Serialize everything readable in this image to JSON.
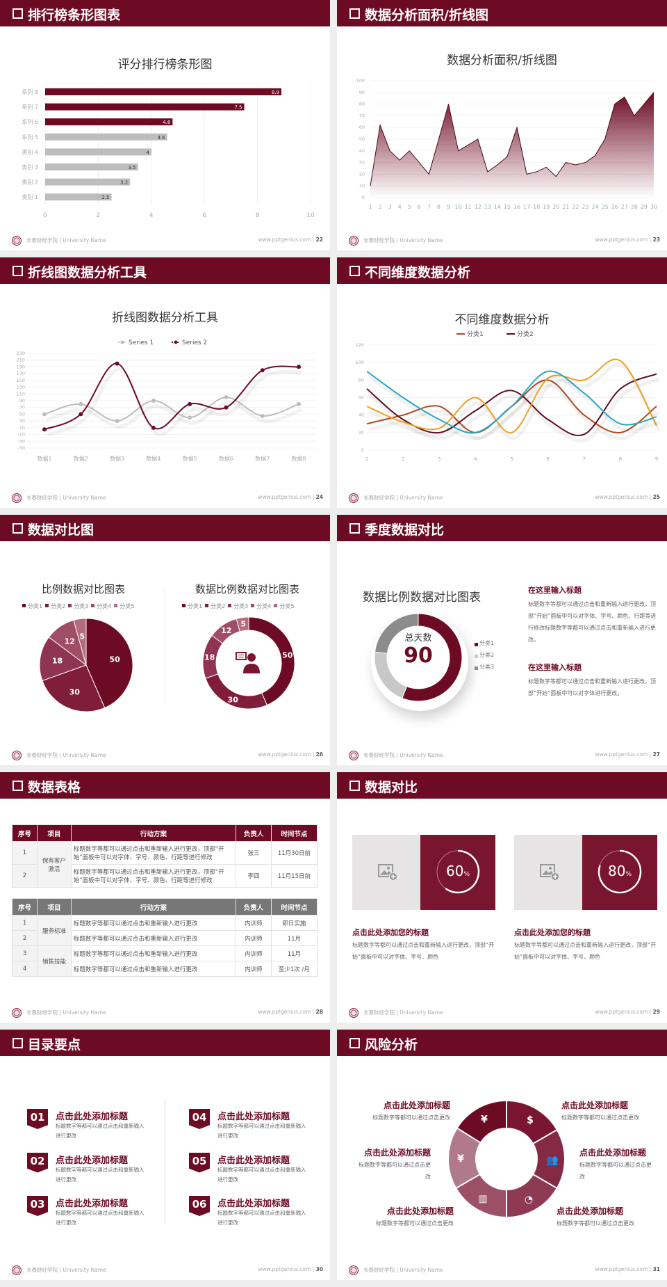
{
  "colors": {
    "brand": "#6d0a24",
    "gray": "#bdbdbd"
  },
  "footer": {
    "school": "长春财经学院 | University Name",
    "site": "www.pptgenius.com"
  },
  "slides": [
    {
      "title": "排行榜条形图表",
      "page": "22"
    },
    {
      "title": "数据分析面积/折线图",
      "page": "23"
    },
    {
      "title": "折线图数据分析工具",
      "page": "24"
    },
    {
      "title": "不同维度数据分析",
      "page": "25"
    },
    {
      "title": "数据对比图",
      "page": "26"
    },
    {
      "title": "季度数据对比",
      "page": "27"
    },
    {
      "title": "数据表格",
      "page": "28"
    },
    {
      "title": "数据对比",
      "page": "29"
    },
    {
      "title": "目录要点",
      "page": "30"
    },
    {
      "title": "风险分析",
      "page": "31"
    }
  ],
  "chart_data": [
    {
      "type": "bar",
      "orientation": "horizontal",
      "title": "评分排行榜条形图",
      "categories": [
        "系列 8",
        "系列 7",
        "系列 6",
        "系列 5",
        "类别 4",
        "类别 3",
        "类别 2",
        "类别 1"
      ],
      "values": [
        8.9,
        7.5,
        4.8,
        4.6,
        4,
        3.5,
        3.2,
        2.5
      ],
      "bar_colors": [
        "#6d0a24",
        "#6d0a24",
        "#6d0a24",
        "#bdbdbd",
        "#bdbdbd",
        "#bdbdbd",
        "#bdbdbd",
        "#bdbdbd"
      ],
      "xlim": [
        0,
        10
      ],
      "xticks": [
        "0",
        "2",
        "4",
        "6",
        "8",
        "10"
      ],
      "grid": true
    },
    {
      "type": "area",
      "title": "数据分析面积/折线图",
      "x": [
        "1",
        "2",
        "3",
        "4",
        "5",
        "6",
        "7",
        "8",
        "9",
        "10",
        "11",
        "12",
        "13",
        "14",
        "15",
        "16",
        "17",
        "18",
        "19",
        "20",
        "21",
        "22",
        "23",
        "24",
        "25",
        "26",
        "27",
        "28",
        "29",
        "30"
      ],
      "values": [
        10,
        62,
        40,
        32,
        40,
        30,
        20,
        50,
        80,
        40,
        45,
        50,
        22,
        28,
        35,
        60,
        20,
        22,
        26,
        18,
        30,
        28,
        30,
        36,
        50,
        80,
        86,
        70,
        80,
        90
      ],
      "ylim": [
        0,
        100
      ],
      "yticks": [
        "0",
        "10",
        "20",
        "30",
        "40",
        "50",
        "60",
        "70",
        "80",
        "90",
        "100"
      ],
      "color": "#6d0a24"
    },
    {
      "type": "line",
      "smooth": true,
      "title": "折线图数据分析工具",
      "categories": [
        "数据1",
        "数据2",
        "数据3",
        "数据4",
        "数据5",
        "数据6",
        "数据7",
        "数据8"
      ],
      "series": [
        {
          "name": "Series 1",
          "values": [
            50,
            80,
            30,
            90,
            40,
            100,
            45,
            80
          ],
          "color": "#bdbdbd"
        },
        {
          "name": "Series 2",
          "values": [
            5,
            50,
            200,
            10,
            80,
            70,
            180,
            190
          ],
          "color": "#6d0a24"
        }
      ],
      "ylim": [
        -50,
        230
      ],
      "yticks": [
        "-50",
        "-30",
        "-10",
        "10",
        "30",
        "50",
        "70",
        "90",
        "110",
        "130",
        "150",
        "170",
        "190",
        "210",
        "230"
      ],
      "legend": "top"
    },
    {
      "type": "line",
      "smooth": true,
      "title": "不同维度数据分析",
      "categories": [
        "1",
        "2",
        "3",
        "4",
        "5",
        "6",
        "7",
        "8",
        "9"
      ],
      "series": [
        {
          "name": "分类1",
          "values": [
            30,
            40,
            50,
            20,
            50,
            80,
            40,
            20,
            50
          ],
          "color": "#b5461f"
        },
        {
          "name": "分类2",
          "values": [
            70,
            35,
            20,
            45,
            68,
            35,
            18,
            70,
            87
          ],
          "color": "#5e0b1e"
        },
        {
          "values": [
            50,
            32,
            25,
            60,
            20,
            82,
            80,
            102,
            28
          ],
          "color": "#f0a020"
        },
        {
          "values": [
            90,
            60,
            35,
            20,
            50,
            90,
            65,
            30,
            38
          ],
          "color": "#2aa6c0"
        }
      ],
      "ylim": [
        0,
        120
      ],
      "yticks": [
        "0",
        "20",
        "40",
        "60",
        "80",
        "100",
        "120"
      ],
      "legend": "top"
    },
    {
      "type": "pie",
      "title": "比例数据对比图表",
      "labels": [
        "分类1",
        "分类2",
        "分类3",
        "分类4",
        "分类5"
      ],
      "values": [
        50,
        30,
        18,
        12,
        5
      ],
      "colors": [
        "#6d0a24",
        "#7f1d3b",
        "#8f3452",
        "#a04d68",
        "#b36b82"
      ],
      "legend": "top"
    },
    {
      "type": "pie",
      "donut": true,
      "title": "数据比例数据对比图表",
      "labels": [
        "分类1",
        "分类2",
        "分类3",
        "分类4",
        "分类5"
      ],
      "values": [
        50,
        30,
        18,
        12,
        5
      ],
      "colors": [
        "#6d0a24",
        "#7f1d3b",
        "#8f3452",
        "#a04d68",
        "#b36b82"
      ],
      "legend": "top",
      "center_icon": "presenter-icon"
    },
    {
      "type": "pie",
      "donut": true,
      "title": "数据比例数据对比图表",
      "labels": [
        "分类1",
        "分类2",
        "分类3"
      ],
      "values": [
        56,
        21,
        23
      ],
      "colors": [
        "#6d0a24",
        "#c8c8c8",
        "#8c8c8c"
      ],
      "legend": "right",
      "center_label": "总天数",
      "center_value": "90"
    }
  ],
  "quarter": {
    "blocks": [
      {
        "heading": "在这里输入标题",
        "text": "标题数字等都可以通过点击和重新输入进行更改，顶部“开始”面板中可以对字体、字号、颜色、行距等进行修改标题数字等都可以通过点击和重新输入进行更改。"
      },
      {
        "heading": "在这里输入标题",
        "text": "标题数字等都可以通过点击和重新输入进行更改，顶部“开始”面板中可以对字体进行更改。"
      }
    ]
  },
  "tables": {
    "headers": [
      "序号",
      "项目",
      "行动方案",
      "负责人",
      "时间节点"
    ],
    "table1": {
      "group": "保有客户激活",
      "rows": [
        {
          "no": "1",
          "plan": "标题数字等都可以通过点击和重新输入进行更改，顶部“开始”面板中可以对字体、字号、颜色、行距等进行修改",
          "owner": "张三",
          "time": "11月30日前"
        },
        {
          "no": "2",
          "plan": "标题数字等都可以通过点击和重新输入进行更改，顶部“开始”面板中可以对字体、字号、颜色、行距等进行修改",
          "owner": "李四",
          "time": "11月15日前"
        }
      ]
    },
    "table2": {
      "groups": [
        "服务标准",
        "销售技能"
      ],
      "rows": [
        {
          "no": "1",
          "plan": "标题数字等都可以通过点击和重新输入进行更改",
          "owner": "内训师",
          "time": "即日实施"
        },
        {
          "no": "2",
          "plan": "标题数字等都可以通过点击和重新输入进行更改",
          "owner": "内训师",
          "time": "11月"
        },
        {
          "no": "3",
          "plan": "标题数字等都可以通过点击和重新输入进行更改",
          "owner": "内训师",
          "time": "11月"
        },
        {
          "no": "4",
          "plan": "标题数字等都可以通过点击和重新输入进行更改",
          "owner": "内训师",
          "time": "至少1次 /月"
        }
      ]
    }
  },
  "compare": {
    "cards": [
      {
        "percent": 60,
        "value": "60",
        "unit": "%",
        "heading": "点击此处添加您的标题",
        "text": "标题数字等都可以通过点击和重新输入进行更改，顶部“开始”面板中可以对字体、字号、颜色",
        "image_icon": "add-image-icon"
      },
      {
        "percent": 80,
        "value": "80",
        "unit": "%",
        "heading": "点击此处添加您的标题",
        "text": "标题数字等都可以通过点击和重新输入进行更改，顶部“开始”面板中可以对字体、字号、颜色",
        "image_icon": "add-image-icon"
      }
    ]
  },
  "toc": {
    "items": [
      {
        "num": "01",
        "title": "点击此处添加标题",
        "text": "标题数字等都可以通过点击和重新输入进行更改"
      },
      {
        "num": "02",
        "title": "点击此处添加标题",
        "text": "标题数字等都可以通过点击和重新输入进行更改"
      },
      {
        "num": "03",
        "title": "点击此处添加标题",
        "text": "标题数字等都可以通过点击和重新输入进行更改"
      },
      {
        "num": "04",
        "title": "点击此处添加标题",
        "text": "标题数字等都可以通过点击和重新输入进行更改"
      },
      {
        "num": "05",
        "title": "点击此处添加标题",
        "text": "标题数字等都可以通过点击和重新输入进行更改"
      },
      {
        "num": "06",
        "title": "点击此处添加标题",
        "text": "标题数字等都可以通过点击和重新输入进行更改"
      }
    ]
  },
  "risk": {
    "items": [
      {
        "title": "点击此处添加标题",
        "text": "标题数字等都可以通过点击更改",
        "icon": "money-bag-icon"
      },
      {
        "title": "点击此处添加标题",
        "text": "标题数字等都可以通过点击更改",
        "icon": "coins-icon"
      },
      {
        "title": "点击此处添加标题",
        "text": "标题数字等都可以通过点击更改",
        "icon": "people-icon"
      },
      {
        "title": "点击此处添加标题",
        "text": "标题数字等都可以通过点击更改",
        "icon": "pie-chart-icon"
      },
      {
        "title": "点击此处添加标题",
        "text": "标题数字等都可以通过点击更改",
        "icon": "building-icon"
      },
      {
        "title": "点击此处添加标题",
        "text": "标题数字等都可以通过点击更改",
        "icon": "yen-hand-icon"
      }
    ]
  }
}
